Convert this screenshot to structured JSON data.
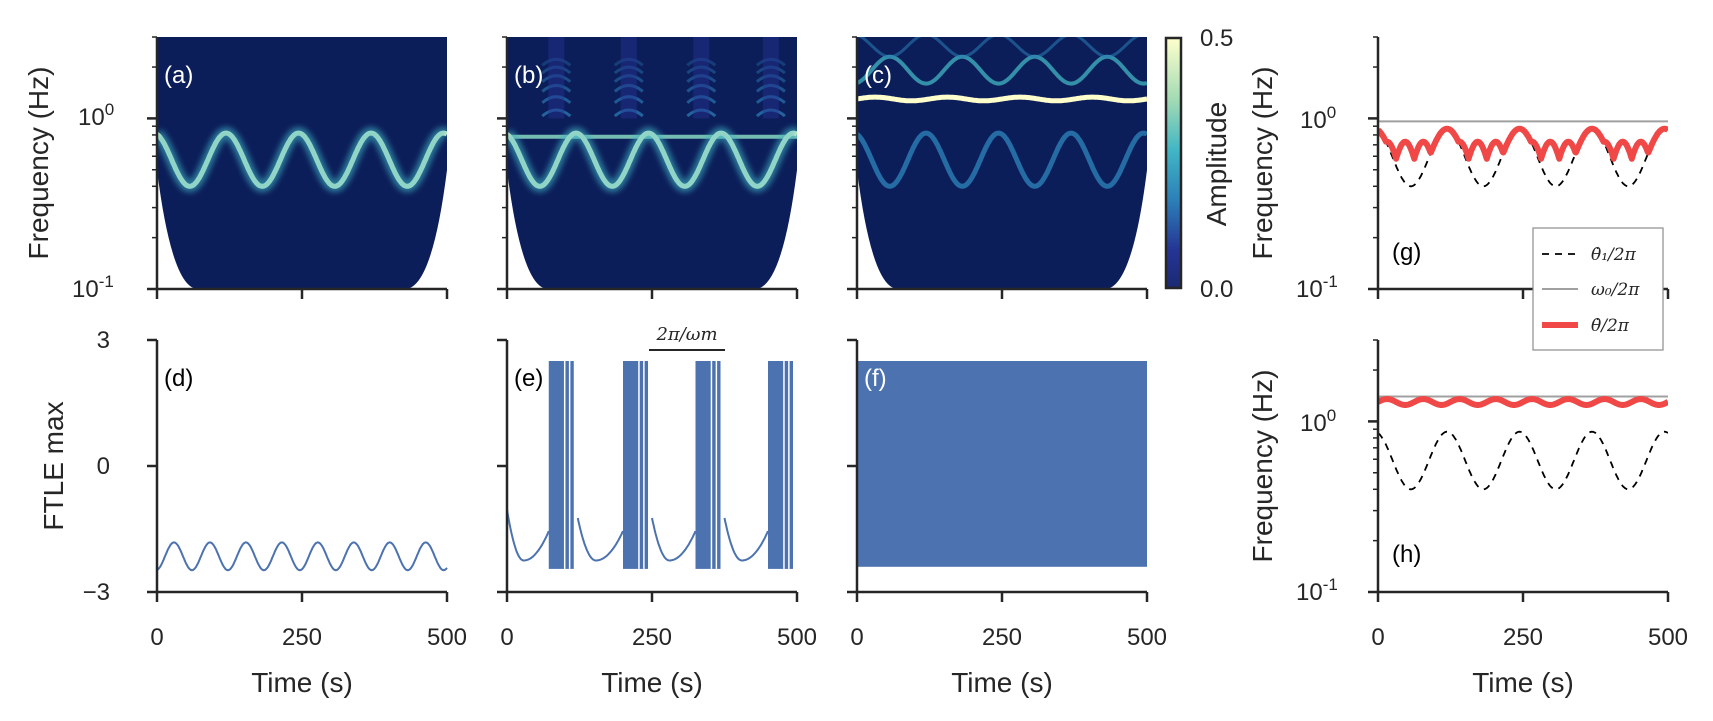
{
  "chart_data": [
    {
      "id": "a",
      "type": "heatmap",
      "title": "(a)",
      "xlabel": "",
      "ylabel": "Frequency (Hz)",
      "xlim": [
        0,
        500
      ],
      "yscale": "log",
      "ylim": [
        0.1,
        3
      ],
      "ytick_labels": [
        "10^0",
        "10^-1"
      ],
      "description_series": [
        {
          "name": "ridge",
          "center_hz": 0.55,
          "min_hz": 0.4,
          "max_hz": 0.82,
          "cycles": 4
        }
      ]
    },
    {
      "id": "b",
      "type": "heatmap",
      "title": "(b)",
      "xlim": [
        0,
        500
      ],
      "yscale": "log",
      "ylim": [
        0.1,
        3
      ],
      "description_series": [
        {
          "name": "ridge",
          "min_hz": 0.4,
          "max_hz": 0.82,
          "cycles": 4
        },
        {
          "name": "flat",
          "hz": 0.78
        }
      ]
    },
    {
      "id": "c",
      "type": "heatmap",
      "title": "(c)",
      "xlim": [
        0,
        500
      ],
      "yscale": "log",
      "ylim": [
        0.1,
        3
      ],
      "description_series": [
        {
          "name": "flat",
          "hz": 1.3
        },
        {
          "name": "ridge",
          "min_hz": 0.4,
          "max_hz": 0.82,
          "cycles": 4
        }
      ]
    },
    {
      "id": "colorbar",
      "type": "heatmap",
      "label": "Amplitude",
      "range": [
        0.0,
        0.5
      ],
      "tick_labels": [
        "0.5",
        "0.0"
      ],
      "colors": [
        "#0b1d5e",
        "#253494",
        "#2c7fb8",
        "#41b6c4",
        "#7fcdbb",
        "#c7e9b4",
        "#ffffcc"
      ]
    },
    {
      "id": "d",
      "type": "line",
      "title": "(d)",
      "xlabel": "Time (s)",
      "ylabel": "FTLE max",
      "xlim": [
        0,
        500
      ],
      "ylim": [
        -3,
        3
      ],
      "ytick_labels": [
        "3",
        "0",
        "−3"
      ],
      "xtick_labels": [
        "0",
        "250",
        "500"
      ],
      "series": [
        {
          "name": "FTLE",
          "mean": -2.15,
          "amplitude": 0.33,
          "period": 62
        }
      ]
    },
    {
      "id": "e",
      "type": "line",
      "title": "(e)",
      "xlabel": "Time (s)",
      "xlim": [
        0,
        500
      ],
      "ylim": [
        -3,
        3
      ],
      "xtick_labels": [
        "0",
        "250",
        "500"
      ],
      "bursts": [
        [
          72,
          122
        ],
        [
          200,
          250
        ],
        [
          325,
          375
        ],
        [
          450,
          500
        ]
      ],
      "annotation": "2π/ωm"
    },
    {
      "id": "f",
      "type": "line",
      "title": "(f)",
      "xlabel": "Time (s)",
      "xlim": [
        0,
        500
      ],
      "ylim": [
        -3,
        3
      ],
      "xtick_labels": [
        "0",
        "250",
        "500"
      ],
      "band": [
        -2.4,
        2.5
      ]
    },
    {
      "id": "g",
      "type": "line",
      "title": "(g)",
      "xlabel": "",
      "ylabel": "Frequency (Hz)",
      "xlim": [
        0,
        500
      ],
      "yscale": "log",
      "ylim": [
        0.1,
        3
      ],
      "ytick_labels": [
        "10^0",
        "10^-1"
      ],
      "series": [
        {
          "name": "theta1dot/2pi",
          "style": "dashed",
          "color": "#000000",
          "min": 0.4,
          "max": 0.87,
          "cycles": 4
        },
        {
          "name": "omega0/2pi",
          "style": "solid",
          "color": "#a0a0a0",
          "value": 0.96
        },
        {
          "name": "thetadot/2pi",
          "style": "solid",
          "color": "#f04747",
          "floor": 0.58,
          "max": 0.87,
          "cycles": 8
        }
      ]
    },
    {
      "id": "h",
      "type": "line",
      "title": "(h)",
      "xlabel": "Time (s)",
      "ylabel": "Frequency (Hz)",
      "xlim": [
        0,
        500
      ],
      "yscale": "log",
      "ylim": [
        0.1,
        3
      ],
      "ytick_labels": [
        "10^0",
        "10^-1"
      ],
      "xtick_labels": [
        "0",
        "250",
        "500"
      ],
      "series": [
        {
          "name": "theta1dot/2pi",
          "style": "dashed",
          "color": "#000000",
          "min": 0.4,
          "max": 0.87,
          "cycles": 4
        },
        {
          "name": "omega0/2pi",
          "style": "solid",
          "color": "#a0a0a0",
          "value": 1.4
        },
        {
          "name": "thetadot/2pi",
          "style": "solid",
          "color": "#f04747",
          "mean": 1.3,
          "ripple": 0.04,
          "cycles": 8
        }
      ]
    }
  ],
  "legend": {
    "items": [
      {
        "label": "θ̇₁/2π",
        "style": "dashed",
        "color": "#000000"
      },
      {
        "label": "ω₀/2π",
        "style": "solid",
        "color": "#a0a0a0"
      },
      {
        "label": "θ̇/2π",
        "style": "thick",
        "color": "#f04747"
      }
    ],
    "placement": "right, between panels g and h"
  }
}
